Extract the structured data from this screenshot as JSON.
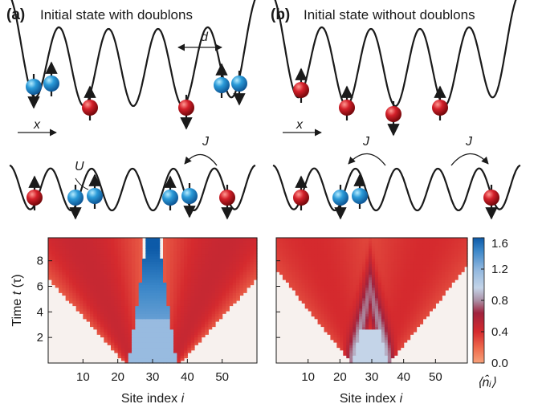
{
  "panels": [
    {
      "letter": "(a)",
      "title": "Initial state with doublons"
    },
    {
      "letter": "(b)",
      "title": "Initial state without doublons"
    }
  ],
  "annotations": {
    "d": "d",
    "x": "x",
    "J": "J",
    "U": "U"
  },
  "plot": {
    "ylabel_main": "Time ",
    "ylabel_var": "t",
    "ylabel_unit": " (τ)",
    "xlabel_main": "Site index ",
    "xlabel_var": "i",
    "xticks": [
      "10",
      "20",
      "30",
      "40",
      "50"
    ],
    "yticks": [
      "2",
      "4",
      "6",
      "8"
    ]
  },
  "colorbar": {
    "ticks": [
      "1.6",
      "1.2",
      "0.8",
      "0.4",
      "0.0"
    ],
    "label": "⟨n̂ᵢ⟩"
  },
  "colors": {
    "red": "#c8161e",
    "blue": "#2a8fd0",
    "low": "#f7f1ee",
    "high": "#0d5aa8"
  }
}
